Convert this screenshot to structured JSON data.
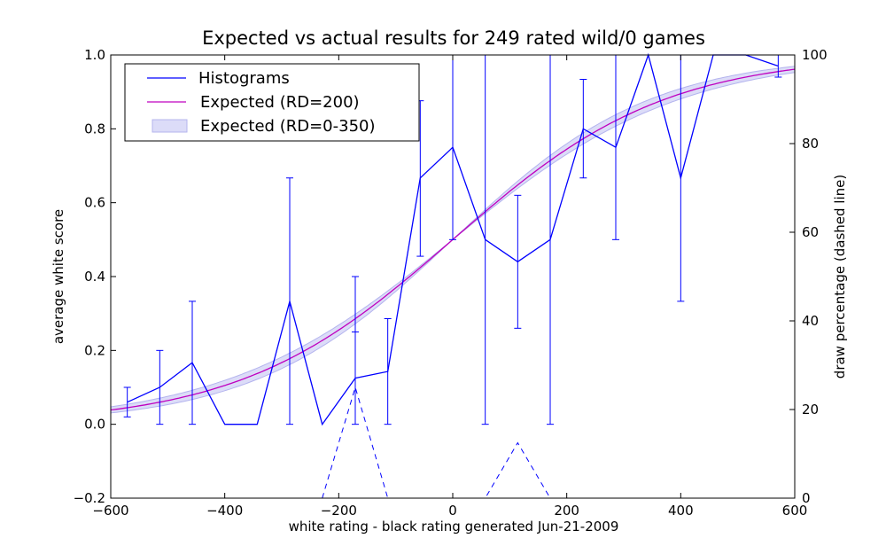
{
  "chart_data": {
    "type": "line",
    "title": "Expected vs actual results for 249 rated wild/0 games",
    "xlabel": "white rating - black rating     generated Jun-21-2009",
    "ylabel": "average white score",
    "y2label": "draw percentage (dashed line)",
    "xlim": [
      -600,
      600
    ],
    "ylim": [
      -0.2,
      1.0
    ],
    "y2lim": [
      0,
      100
    ],
    "x_ticks": [
      -600,
      -400,
      -200,
      0,
      200,
      400,
      600
    ],
    "x_tick_labels": [
      "−600",
      "−400",
      "−200",
      "0",
      "200",
      "400",
      "600"
    ],
    "y_ticks": [
      -0.2,
      0.0,
      0.2,
      0.4,
      0.6,
      0.8,
      1.0
    ],
    "y_tick_labels": [
      "−0.2",
      "0.0",
      "0.2",
      "0.4",
      "0.6",
      "0.8",
      "1.0"
    ],
    "y2_ticks": [
      0,
      20,
      40,
      60,
      80,
      100
    ],
    "y2_tick_labels": [
      "0",
      "20",
      "40",
      "60",
      "80",
      "100"
    ],
    "legend_position": "top-left",
    "colors": {
      "histogram": "#0000ff",
      "expected": "#bf00bf",
      "band_fill": "#dcdcf8",
      "band_edge": "#b4b4ee"
    },
    "series": [
      {
        "name": "Histograms",
        "x": [
          -571,
          -514,
          -457,
          -400,
          -343,
          -286,
          -229,
          -171,
          -114,
          -57,
          0,
          57,
          114,
          171,
          229,
          286,
          343,
          400,
          457,
          514,
          571
        ],
        "y": [
          0.06,
          0.1,
          0.167,
          0.0,
          0.0,
          0.333,
          0.0,
          0.125,
          0.143,
          0.667,
          0.75,
          0.5,
          0.44,
          0.5,
          0.8,
          0.75,
          1.0,
          0.667,
          1.0,
          1.0,
          0.97
        ],
        "yerr_low": [
          0.02,
          0.0,
          0.0,
          null,
          null,
          0.0,
          null,
          0.0,
          0.0,
          0.455,
          0.5,
          0.0,
          0.26,
          0.0,
          0.667,
          0.5,
          null,
          0.333,
          null,
          null,
          0.94
        ],
        "yerr_high": [
          0.1,
          0.2,
          0.333,
          null,
          null,
          0.667,
          null,
          0.4,
          0.286,
          0.876,
          1.0,
          1.0,
          0.62,
          1.0,
          0.934,
          1.0,
          null,
          1.0,
          null,
          null,
          1.0
        ],
        "yerr_low2": [
          null,
          null,
          null,
          null,
          null,
          null,
          null,
          0.0,
          null,
          null,
          null,
          null,
          null,
          null,
          null,
          null,
          null,
          null,
          null,
          null,
          null
        ],
        "yerr_high2": [
          null,
          null,
          null,
          null,
          null,
          null,
          null,
          0.25,
          null,
          null,
          null,
          null,
          null,
          null,
          null,
          null,
          null,
          null,
          null,
          null,
          null
        ]
      },
      {
        "name": "Expected (RD=200)",
        "formula": "1/(1+10^(-x/400))"
      },
      {
        "name": "Expected (RD=0-350)",
        "formula_band": "scale range for RD between 0 and 350"
      },
      {
        "name": "draw percentage",
        "axis": "right",
        "style": "dashed",
        "x": [
          -571,
          -514,
          -457,
          -400,
          -343,
          -286,
          -229,
          -171,
          -114,
          -57,
          0,
          57,
          114,
          171,
          229,
          286,
          343,
          400,
          457,
          514,
          571
        ],
        "y": [
          0,
          0,
          0,
          0,
          0,
          0,
          0,
          25,
          0,
          0,
          0,
          0,
          12.5,
          0,
          0,
          0,
          0,
          0,
          0,
          0,
          0
        ]
      }
    ]
  }
}
